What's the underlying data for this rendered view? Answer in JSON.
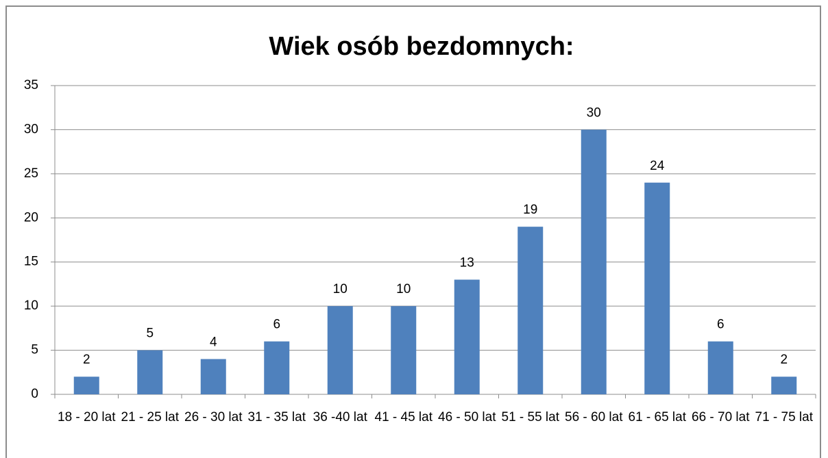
{
  "chart_data": {
    "type": "bar",
    "title": "Wiek osób bezdomnych:",
    "categories": [
      "18 - 20 lat",
      "21 - 25 lat",
      "26 - 30 lat",
      "31 - 35 lat",
      "36 -40 lat",
      "41 - 45 lat",
      "46 - 50 lat",
      "51 - 55 lat",
      "56 - 60 lat",
      "61 - 65 lat",
      "66 - 70 lat",
      "71 - 75 lat"
    ],
    "values": [
      2,
      5,
      4,
      6,
      10,
      10,
      13,
      19,
      30,
      24,
      6,
      2
    ],
    "color": "#4f81bd",
    "ylim": [
      0,
      35
    ],
    "yticks": [
      0,
      5,
      10,
      15,
      20,
      25,
      30,
      35
    ],
    "grid": true
  }
}
